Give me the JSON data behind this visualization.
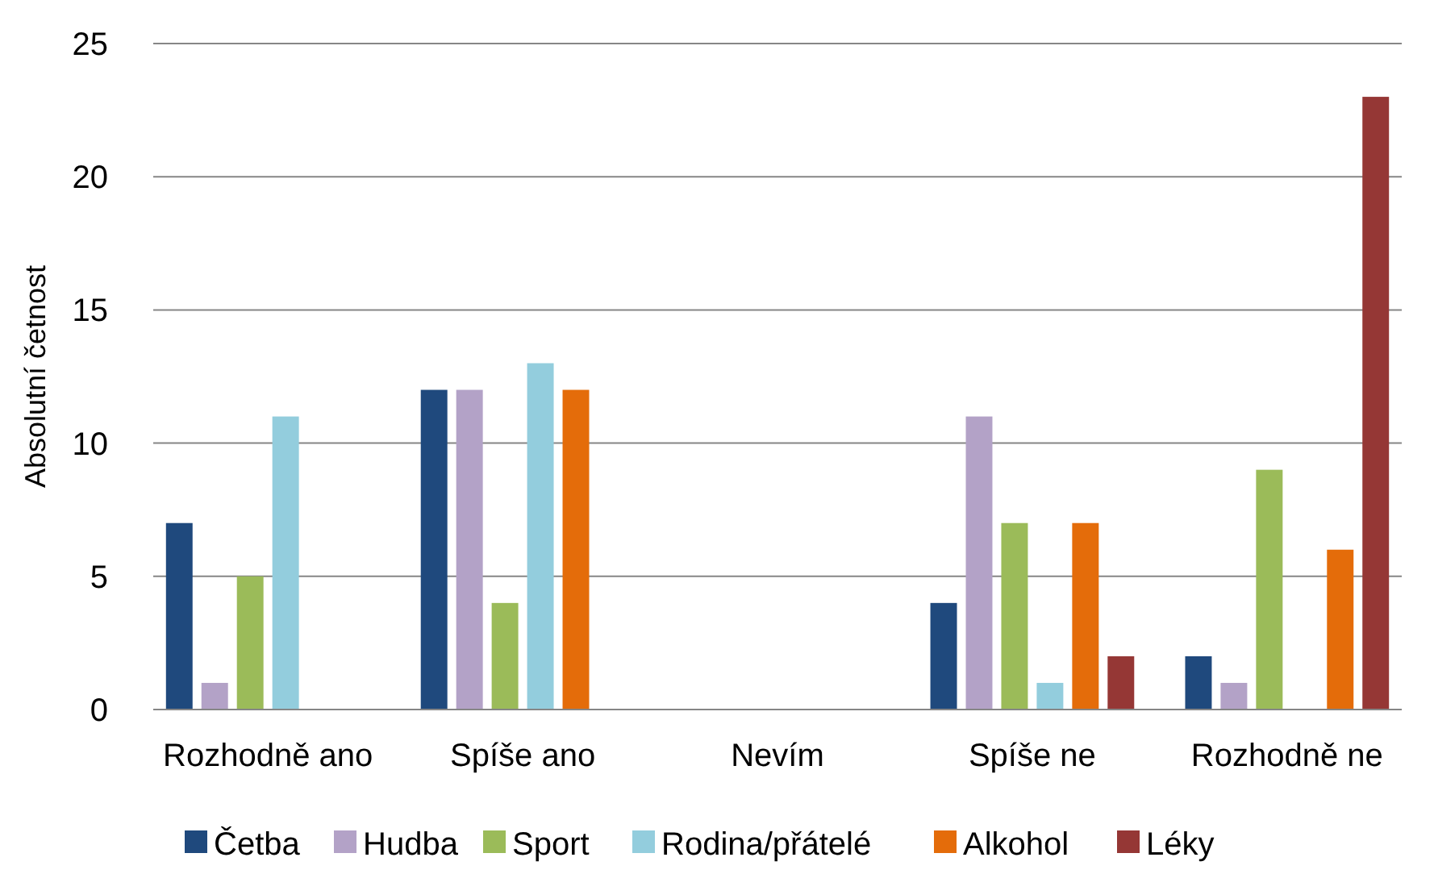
{
  "chart_data": {
    "type": "bar",
    "ylabel": "Absolutní četnost",
    "categories": [
      "Rozhodně ano",
      "Spíše ano",
      "Nevím",
      "Spíše ne",
      "Rozhodně ne"
    ],
    "series": [
      {
        "name": "Četba",
        "color": "#1f497d",
        "values": [
          7,
          12,
          0,
          4,
          2
        ]
      },
      {
        "name": "Hudba",
        "color": "#b3a2c7",
        "values": [
          1,
          12,
          0,
          11,
          1
        ]
      },
      {
        "name": "Sport",
        "color": "#9bbb59",
        "values": [
          5,
          4,
          0,
          7,
          9
        ]
      },
      {
        "name": "Rodina/přátelé",
        "color": "#93cddd",
        "values": [
          11,
          13,
          0,
          1,
          0
        ]
      },
      {
        "name": "Alkohol",
        "color": "#e46c0a",
        "values": [
          0,
          12,
          0,
          7,
          6
        ]
      },
      {
        "name": "Léky",
        "color": "#953735",
        "values": [
          0,
          0,
          0,
          2,
          23
        ]
      }
    ],
    "ylim": [
      0,
      25
    ],
    "yticks": [
      0,
      5,
      10,
      15,
      20,
      25
    ],
    "grid": "y",
    "legend": "bottom"
  }
}
